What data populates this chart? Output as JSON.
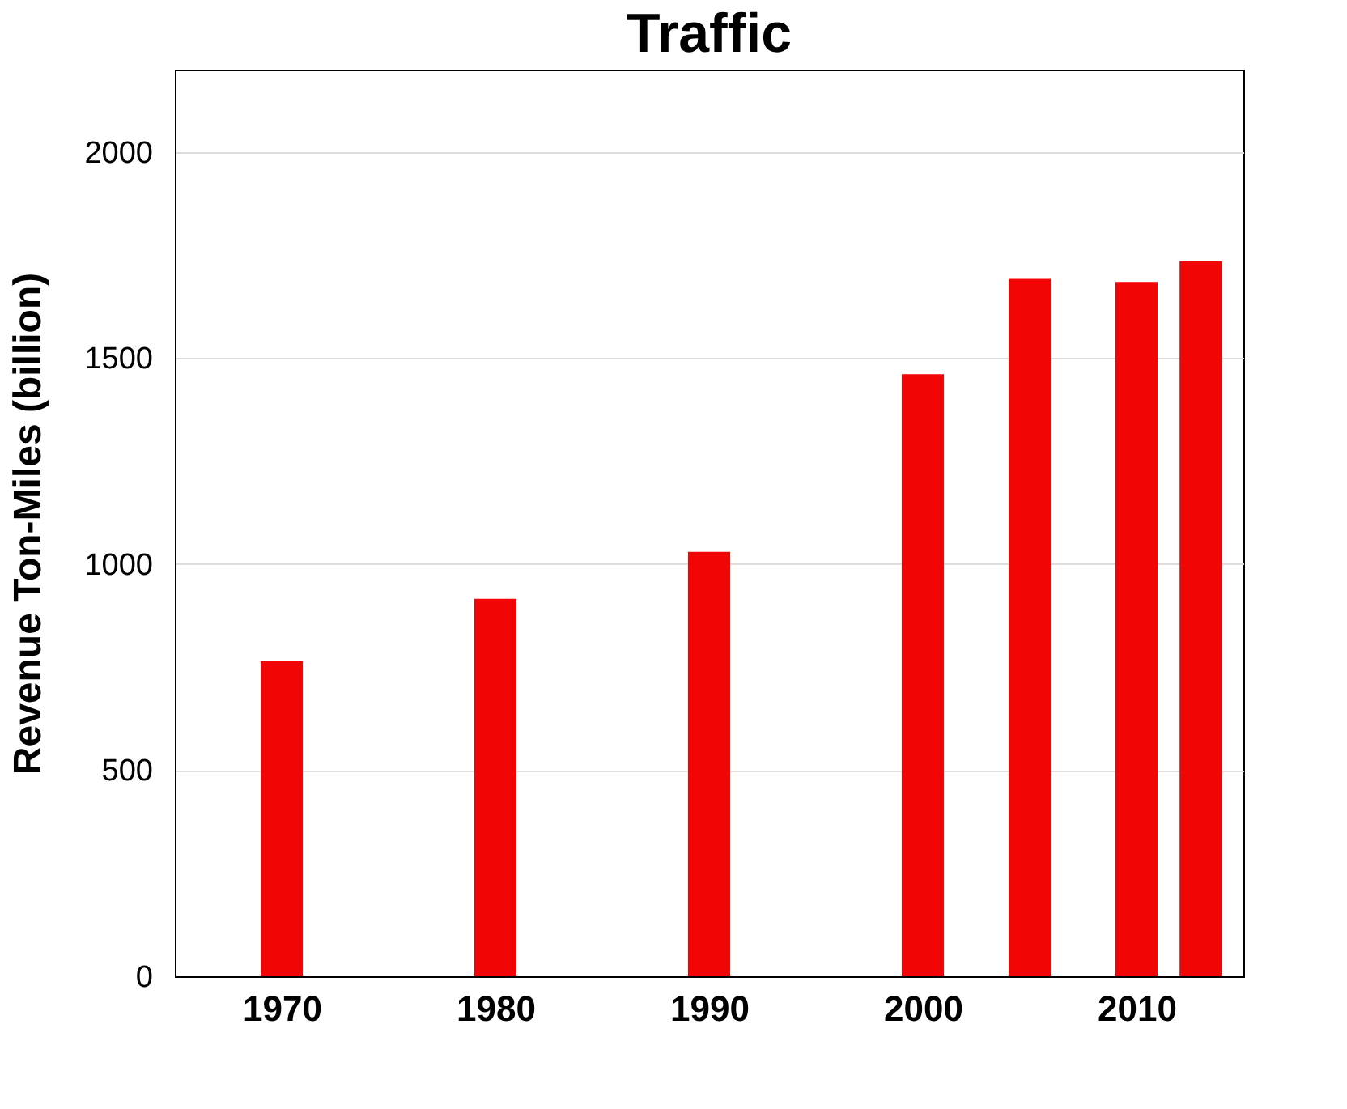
{
  "chart_data": {
    "type": "bar",
    "title": "Traffic",
    "ylabel": "Revenue Ton-Miles (billion)",
    "x": [
      1970,
      1980,
      1990,
      2000,
      2005,
      2010,
      2013
    ],
    "values": [
      764,
      916,
      1030,
      1461,
      1692,
      1685,
      1735
    ],
    "color": "#f20505",
    "xlim": [
      1965,
      2015
    ],
    "xticks": [
      1970,
      1980,
      1990,
      2000,
      2010
    ],
    "ylim": [
      0,
      2200
    ],
    "yticks": [
      0,
      500,
      1000,
      1500,
      2000
    ],
    "grid": "y"
  }
}
